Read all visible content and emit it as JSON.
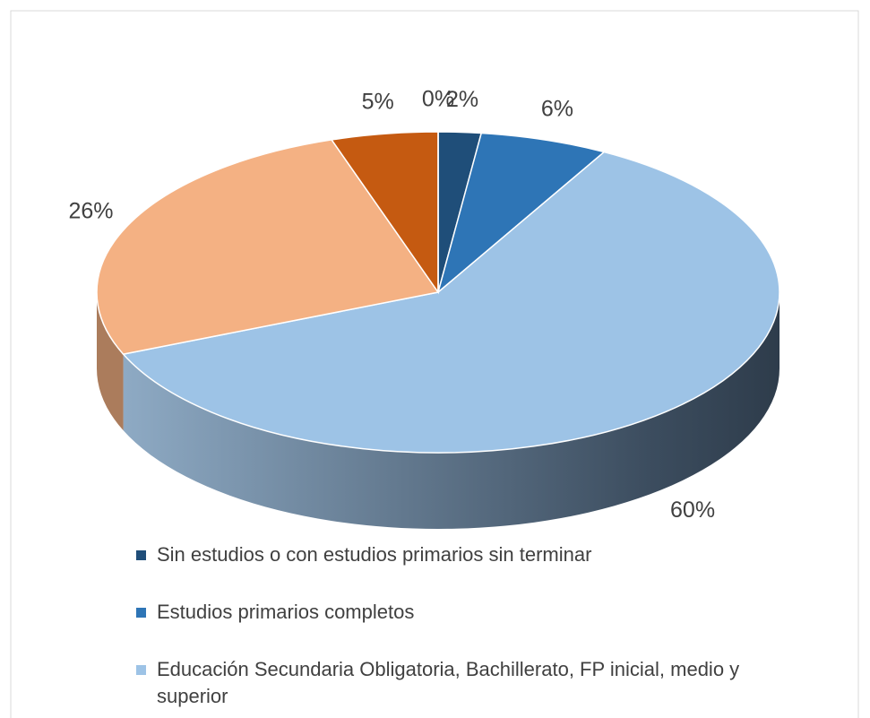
{
  "chart_data": {
    "type": "pie3d",
    "categories": [
      "Sin estudios o con estudios primarios sin terminar",
      "Estudios primarios completos",
      "Educación Secundaria Obligatoria, Bachillerato, FP inicial, medio y superior",
      null,
      null,
      null
    ],
    "values": [
      2,
      6,
      60,
      26,
      5,
      0
    ],
    "value_labels": [
      "2%",
      "6%",
      "60%",
      "26%",
      "5%",
      "0%"
    ],
    "colors": [
      "#1f4e79",
      "#2e75b6",
      "#9dc3e6",
      "#f4b183",
      "#c55a11",
      "#ffc000"
    ],
    "legend": "bottom"
  }
}
